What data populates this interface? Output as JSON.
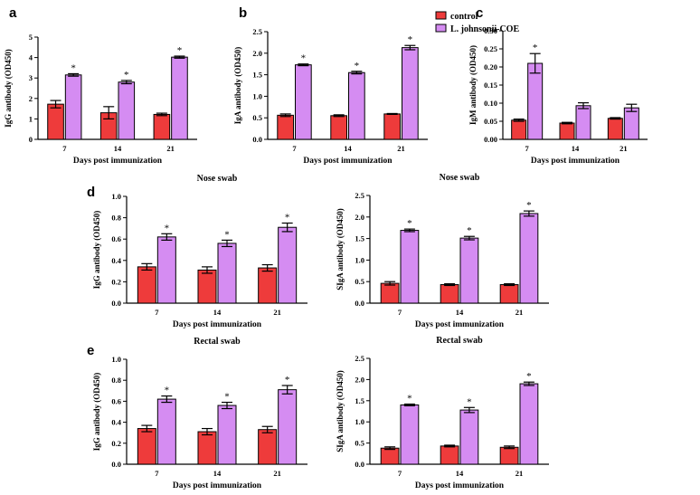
{
  "legend": {
    "entries": [
      {
        "label": "control",
        "color": "#ee3b3b"
      },
      {
        "label": "L. johnsonii-COE",
        "color": "#d58cf2"
      }
    ]
  },
  "colors": {
    "control": "#ee3b3b",
    "coe": "#d58cf2",
    "axis": "#000000"
  },
  "chart_data": [
    {
      "letter": "a",
      "type": "bar",
      "title": "",
      "xlabel": "Days post immunization",
      "ylabel": "IgG antibody (OD450)",
      "categories": [
        "7",
        "14",
        "21"
      ],
      "ylim": [
        0,
        5
      ],
      "yticks": [
        "0",
        "1",
        "2",
        "3",
        "4",
        "5"
      ],
      "series": [
        {
          "name": "control",
          "values": [
            1.72,
            1.3,
            1.22
          ],
          "errors": [
            0.18,
            0.3,
            0.06
          ]
        },
        {
          "name": "L. johnsonii-COE",
          "values": [
            3.15,
            2.8,
            4.02
          ],
          "errors": [
            0.06,
            0.08,
            0.05
          ]
        }
      ],
      "significance": [
        "*",
        "*",
        "*"
      ]
    },
    {
      "letter": "b",
      "type": "bar",
      "title": "",
      "xlabel": "Days post immunization",
      "ylabel": "IgA antibody (OD450)",
      "categories": [
        "7",
        "14",
        "21"
      ],
      "ylim": [
        0,
        2.5
      ],
      "yticks": [
        "0.0",
        "0.5",
        "1.0",
        "1.5",
        "2.0",
        "2.5"
      ],
      "series": [
        {
          "name": "control",
          "values": [
            0.56,
            0.55,
            0.59
          ],
          "errors": [
            0.03,
            0.02,
            0.01
          ]
        },
        {
          "name": "L. johnsonii-COE",
          "values": [
            1.73,
            1.55,
            2.13
          ],
          "errors": [
            0.02,
            0.03,
            0.05
          ]
        }
      ],
      "significance": [
        "*",
        "*",
        "*"
      ]
    },
    {
      "letter": "c",
      "type": "bar",
      "title": "",
      "xlabel": "Days post immunization",
      "ylabel": "IgM antibody (OD450)",
      "categories": [
        "7",
        "14",
        "21"
      ],
      "ylim": [
        0,
        0.3
      ],
      "yticks": [
        "0.00",
        "0.05",
        "0.10",
        "0.15",
        "0.20",
        "0.25",
        "0.30"
      ],
      "series": [
        {
          "name": "control",
          "values": [
            0.053,
            0.045,
            0.058
          ],
          "errors": [
            0.003,
            0.002,
            0.002
          ]
        },
        {
          "name": "L. johnsonii-COE",
          "values": [
            0.21,
            0.093,
            0.087
          ],
          "errors": [
            0.027,
            0.008,
            0.01
          ]
        }
      ],
      "significance": [
        "*",
        "",
        ""
      ]
    },
    {
      "letter": "d",
      "type": "bar",
      "title": "Nose swab",
      "xlabel": "Days post immunization",
      "ylabel": "IgG antibody (OD450)",
      "categories": [
        "7",
        "14",
        "21"
      ],
      "ylim": [
        0,
        1.0
      ],
      "yticks": [
        "0.0",
        "0.2",
        "0.4",
        "0.6",
        "0.8",
        "1.0"
      ],
      "series": [
        {
          "name": "control",
          "values": [
            0.34,
            0.31,
            0.33
          ],
          "errors": [
            0.03,
            0.03,
            0.03
          ]
        },
        {
          "name": "L. johnsonii-COE",
          "values": [
            0.62,
            0.56,
            0.71
          ],
          "errors": [
            0.03,
            0.03,
            0.04
          ]
        }
      ],
      "significance": [
        "*",
        "*",
        "*"
      ]
    },
    {
      "letter": "",
      "type": "bar",
      "title": "Nose swab",
      "xlabel": "Days post immunization",
      "ylabel": "SIgA antibody (OD450)",
      "categories": [
        "7",
        "14",
        "21"
      ],
      "ylim": [
        0,
        2.5
      ],
      "yticks": [
        "0.0",
        "0.5",
        "1.0",
        "1.5",
        "2.0",
        "2.5"
      ],
      "series": [
        {
          "name": "control",
          "values": [
            0.46,
            0.43,
            0.43
          ],
          "errors": [
            0.04,
            0.02,
            0.02
          ]
        },
        {
          "name": "L. johnsonii-COE",
          "values": [
            1.69,
            1.51,
            2.08
          ],
          "errors": [
            0.03,
            0.04,
            0.06
          ]
        }
      ],
      "significance": [
        "*",
        "*",
        "*"
      ]
    },
    {
      "letter": "e",
      "type": "bar",
      "title": "Rectal swab",
      "xlabel": "Days post immunization",
      "ylabel": "IgG antibody (OD450)",
      "categories": [
        "7",
        "14",
        "21"
      ],
      "ylim": [
        0,
        1.0
      ],
      "yticks": [
        "0.0",
        "0.2",
        "0.4",
        "0.6",
        "0.8",
        "1.0"
      ],
      "series": [
        {
          "name": "control",
          "values": [
            0.34,
            0.31,
            0.33
          ],
          "errors": [
            0.03,
            0.03,
            0.03
          ]
        },
        {
          "name": "L. johnsonii-COE",
          "values": [
            0.62,
            0.56,
            0.71
          ],
          "errors": [
            0.03,
            0.03,
            0.04
          ]
        }
      ],
      "significance": [
        "*",
        "*",
        "*"
      ]
    },
    {
      "letter": "",
      "type": "bar",
      "title": "Rectal swab",
      "xlabel": "Days post immunization",
      "ylabel": "SIgA antibody (OD450)",
      "categories": [
        "7",
        "14",
        "21"
      ],
      "ylim": [
        0,
        2.5
      ],
      "yticks": [
        "0.0",
        "0.5",
        "1.0",
        "1.5",
        "2.0",
        "2.5"
      ],
      "series": [
        {
          "name": "control",
          "values": [
            0.38,
            0.43,
            0.4
          ],
          "errors": [
            0.03,
            0.02,
            0.03
          ]
        },
        {
          "name": "L. johnsonii-COE",
          "values": [
            1.4,
            1.28,
            1.9
          ],
          "errors": [
            0.02,
            0.06,
            0.04
          ]
        }
      ],
      "significance": [
        "*",
        "*",
        "*"
      ]
    }
  ]
}
